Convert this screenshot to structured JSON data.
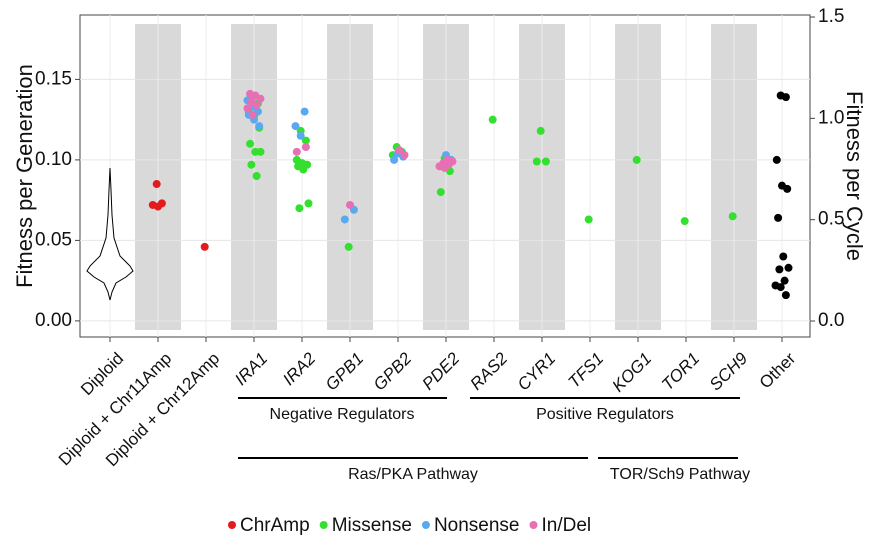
{
  "chart_data": {
    "type": "strip",
    "ylabel": "Fitness per Generation",
    "y2label": "Fitness per Cycle",
    "categories": [
      "Diploid",
      "Diploid + Chr11Amp",
      "Diploid + Chr12Amp",
      "IRA1",
      "IRA2",
      "GPB1",
      "GPB2",
      "PDE2",
      "RAS2",
      "CYR1",
      "TFS1",
      "KOG1",
      "TOR1",
      "SCH9",
      "Other"
    ],
    "category_italic": [
      false,
      false,
      false,
      true,
      true,
      true,
      true,
      true,
      true,
      true,
      true,
      true,
      true,
      true,
      false
    ],
    "ylim": [
      -0.01,
      0.19
    ],
    "yticks": [
      {
        "value": 0,
        "label": "0.00"
      },
      {
        "value": 0.05,
        "label": "0.05"
      },
      {
        "value": 0.1,
        "label": "0.10"
      },
      {
        "value": 0.15,
        "label": "0.15"
      }
    ],
    "y2lim": [
      -0.079,
      1.51
    ],
    "y2ticks": [
      {
        "value": 0,
        "label": "0.0"
      },
      {
        "value": 0.5,
        "label": "0.5"
      },
      {
        "value": 1,
        "label": "1.0"
      },
      {
        "value": 1.5,
        "label": "1.5"
      }
    ],
    "grid": true,
    "series": [
      {
        "name": "ChrAmp",
        "color": "#e41a1c",
        "x": [
          "Diploid + Chr11Amp",
          "Diploid + Chr11Amp",
          "Diploid + Chr11Amp",
          "Diploid + Chr11Amp",
          "Diploid + Chr12Amp"
        ],
        "values": [
          0.085,
          0.073,
          0.072,
          0.071,
          0.046
        ]
      },
      {
        "name": "Missense",
        "color": "#33e02e",
        "x": [
          "IRA1",
          "IRA1",
          "IRA1",
          "IRA1",
          "IRA1",
          "IRA1",
          "IRA1",
          "IRA1",
          "IRA1",
          "IRA1",
          "IRA2",
          "IRA2",
          "IRA2",
          "IRA2",
          "IRA2",
          "IRA2",
          "IRA2",
          "IRA2",
          "IRA2",
          "GPB1",
          "GPB2",
          "GPB2",
          "GPB2",
          "PDE2",
          "PDE2",
          "PDE2",
          "RAS2",
          "CYR1",
          "CYR1",
          "CYR1",
          "TFS1",
          "KOG1",
          "TOR1",
          "SCH9"
        ],
        "values": [
          0.139,
          0.135,
          0.13,
          0.127,
          0.12,
          0.11,
          0.105,
          0.105,
          0.097,
          0.09,
          0.118,
          0.112,
          0.1,
          0.098,
          0.097,
          0.096,
          0.094,
          0.073,
          0.07,
          0.046,
          0.108,
          0.105,
          0.103,
          0.101,
          0.093,
          0.08,
          0.125,
          0.118,
          0.099,
          0.099,
          0.063,
          0.1,
          0.062,
          0.065
        ]
      },
      {
        "name": "Nonsense",
        "color": "#5aa9ee",
        "x": [
          "IRA1",
          "IRA1",
          "IRA1",
          "IRA1",
          "IRA1",
          "IRA1",
          "IRA2",
          "IRA2",
          "IRA2",
          "GPB1",
          "GPB1",
          "GPB2",
          "GPB2",
          "GPB2",
          "PDE2",
          "PDE2",
          "PDE2"
        ],
        "values": [
          0.137,
          0.133,
          0.13,
          0.128,
          0.125,
          0.121,
          0.13,
          0.121,
          0.115,
          0.069,
          0.063,
          0.104,
          0.102,
          0.1,
          0.103,
          0.1,
          0.096
        ]
      },
      {
        "name": "In/Del",
        "color": "#e76fb4",
        "x": [
          "IRA1",
          "IRA1",
          "IRA1",
          "IRA1",
          "IRA1",
          "IRA1",
          "IRA1",
          "IRA2",
          "IRA2",
          "GPB1",
          "GPB2",
          "GPB2",
          "PDE2",
          "PDE2",
          "PDE2",
          "PDE2",
          "PDE2",
          "PDE2"
        ],
        "values": [
          0.141,
          0.14,
          0.138,
          0.136,
          0.134,
          0.132,
          0.128,
          0.108,
          0.105,
          0.072,
          0.106,
          0.103,
          0.1,
          0.099,
          0.098,
          0.097,
          0.096,
          0.095
        ]
      },
      {
        "color": "#000000",
        "x": [
          "Other",
          "Other",
          "Other",
          "Other",
          "Other",
          "Other",
          "Other",
          "Other",
          "Other",
          "Other",
          "Other",
          "Other",
          "Other"
        ],
        "values": [
          0.14,
          0.139,
          0.1,
          0.084,
          0.082,
          0.064,
          0.04,
          0.033,
          0.032,
          0.025,
          0.022,
          0.021,
          0.016
        ]
      }
    ],
    "annotations": [
      "Negative Regulators",
      "Positive Regulators",
      "Ras/PKA Pathway",
      "TOR/Sch9 Pathway"
    ]
  }
}
